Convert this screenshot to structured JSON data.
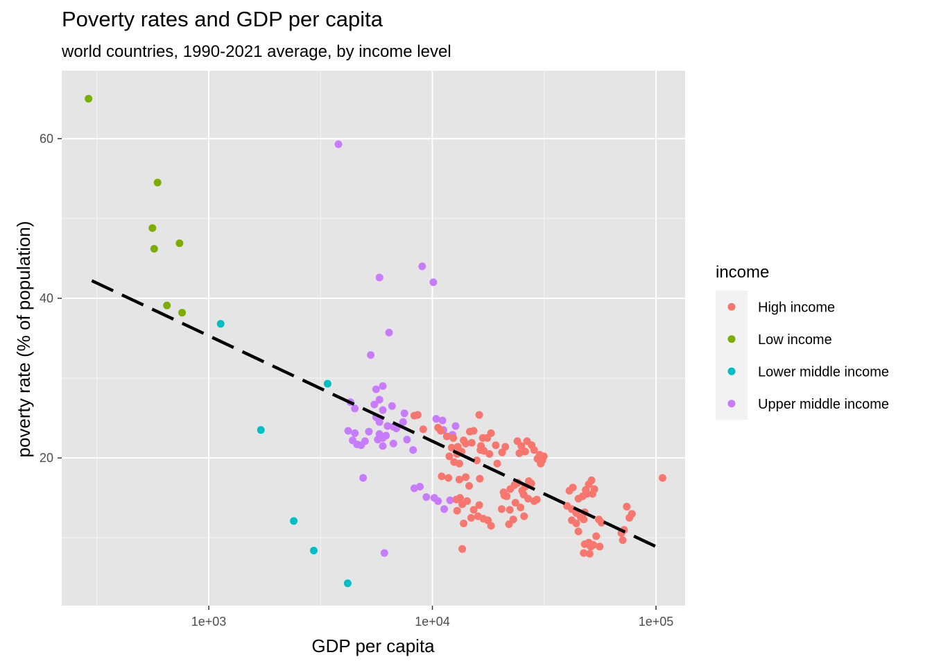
{
  "chart_data": {
    "type": "scatter",
    "title": "Poverty rates and GDP per capita",
    "subtitle": "world countries, 1990-2021 average, by income level",
    "xlabel": "GDP per capita",
    "ylabel": "poverty rate (% of population)",
    "x_scale": "log10",
    "xlim": [
      220,
      135000
    ],
    "ylim": [
      1.5,
      68.5
    ],
    "x_ticks": [
      {
        "value": 1000,
        "label": "1e+03"
      },
      {
        "value": 10000,
        "label": "1e+04"
      },
      {
        "value": 100000,
        "label": "1e+05"
      }
    ],
    "x_minor_ticks": [
      316,
      3162,
      31623
    ],
    "y_ticks": [
      {
        "value": 20,
        "label": "20"
      },
      {
        "value": 40,
        "label": "40"
      },
      {
        "value": 60,
        "label": "60"
      }
    ],
    "y_minor_ticks": [
      10,
      30,
      50
    ],
    "grid": true,
    "panel_background": "#e5e5e5",
    "legend": {
      "title": "income",
      "position": "right",
      "entries": [
        {
          "label": "High income",
          "color": "#F8766D"
        },
        {
          "label": "Low income",
          "color": "#7CAE00"
        },
        {
          "label": "Lower middle income",
          "color": "#00BFC4"
        },
        {
          "label": "Upper middle income",
          "color": "#C77CFF"
        }
      ]
    },
    "trend_line": {
      "style": "dashed",
      "color": "#000000",
      "x": [
        300,
        100000
      ],
      "y": [
        42.2,
        8.9
      ]
    },
    "series": [
      {
        "color": "#7CAE00",
        "points": [
          [
            290,
            65
          ],
          [
            590,
            54.5
          ],
          [
            560,
            48.8
          ],
          [
            570,
            46.2
          ],
          [
            740,
            46.9
          ],
          [
            650,
            39.1
          ],
          [
            760,
            38.2
          ]
        ]
      },
      {
        "color": "#00BFC4",
        "points": [
          [
            1130,
            36.8
          ],
          [
            3400,
            29.3
          ],
          [
            1710,
            23.5
          ],
          [
            2400,
            12.1
          ],
          [
            2950,
            8.4
          ],
          [
            4180,
            4.3
          ]
        ]
      },
      {
        "color": "#C77CFF",
        "points": [
          [
            3800,
            59.3
          ],
          [
            9000,
            44
          ],
          [
            5800,
            42.6
          ],
          [
            10100,
            42
          ],
          [
            6400,
            35.7
          ],
          [
            5300,
            32.9
          ],
          [
            6000,
            29
          ],
          [
            5600,
            28.6
          ],
          [
            4300,
            27
          ],
          [
            5800,
            27.3
          ],
          [
            4500,
            26.2
          ],
          [
            6600,
            26.5
          ],
          [
            5500,
            26.7
          ],
          [
            6000,
            26
          ],
          [
            5600,
            25.1
          ],
          [
            7500,
            25.6
          ],
          [
            5800,
            24.5
          ],
          [
            6300,
            24
          ],
          [
            7400,
            24.5
          ],
          [
            6900,
            23.7
          ],
          [
            6700,
            23.9
          ],
          [
            10400,
            24.9
          ],
          [
            11100,
            24.7
          ],
          [
            12700,
            24
          ],
          [
            4200,
            23.4
          ],
          [
            5200,
            23.3
          ],
          [
            5800,
            23
          ],
          [
            6200,
            22.8
          ],
          [
            4500,
            23.1
          ],
          [
            5700,
            22.3
          ],
          [
            6000,
            22.5
          ],
          [
            12300,
            22.9
          ],
          [
            11200,
            23.5
          ],
          [
            4400,
            22.2
          ],
          [
            4600,
            21.7
          ],
          [
            5000,
            22.1
          ],
          [
            4800,
            21.6
          ],
          [
            6700,
            21.8
          ],
          [
            6000,
            21.5
          ],
          [
            7700,
            22.3
          ],
          [
            8200,
            21
          ],
          [
            4900,
            17.5
          ],
          [
            8300,
            16.2
          ],
          [
            8800,
            16.4
          ],
          [
            9400,
            15.1
          ],
          [
            10200,
            15
          ],
          [
            10600,
            14.6
          ],
          [
            11300,
            13.6
          ],
          [
            12000,
            14.7
          ],
          [
            6100,
            8.1
          ]
        ]
      },
      {
        "color": "#F8766D",
        "points": [
          [
            8300,
            25.3
          ],
          [
            8600,
            25.4
          ],
          [
            9100,
            23.6
          ],
          [
            10600,
            23.8
          ],
          [
            10900,
            23.4
          ],
          [
            11600,
            22.7
          ],
          [
            12400,
            22.5
          ],
          [
            13000,
            21.4
          ],
          [
            13800,
            22.2
          ],
          [
            14700,
            23.3
          ],
          [
            15300,
            23.4
          ],
          [
            14100,
            21.8
          ],
          [
            16200,
            25.4
          ],
          [
            16800,
            22.5
          ],
          [
            17600,
            22.5
          ],
          [
            18300,
            23.1
          ],
          [
            19200,
            21.6
          ],
          [
            16400,
            21
          ],
          [
            17000,
            20.9
          ],
          [
            18000,
            20.5
          ],
          [
            19500,
            19.3
          ],
          [
            20500,
            20.7
          ],
          [
            21200,
            21.4
          ],
          [
            15000,
            21.9
          ],
          [
            16500,
            21.5
          ],
          [
            15800,
            19.7
          ],
          [
            13500,
            20.8
          ],
          [
            12200,
            21.3
          ],
          [
            11900,
            20.2
          ],
          [
            12900,
            20.5
          ],
          [
            12500,
            19.5
          ],
          [
            13200,
            19.3
          ],
          [
            24000,
            22.1
          ],
          [
            25000,
            21.5
          ],
          [
            26500,
            22.1
          ],
          [
            27800,
            21.6
          ],
          [
            24500,
            20.6
          ],
          [
            26000,
            20.8
          ],
          [
            28500,
            21
          ],
          [
            29500,
            19.9
          ],
          [
            30200,
            20.4
          ],
          [
            31000,
            19.7
          ],
          [
            31500,
            20.2
          ],
          [
            30500,
            19.3
          ],
          [
            11000,
            17.7
          ],
          [
            11800,
            17.5
          ],
          [
            13200,
            17.3
          ],
          [
            14100,
            17.6
          ],
          [
            14600,
            16.5
          ],
          [
            16300,
            17.4
          ],
          [
            20800,
            15.7
          ],
          [
            21500,
            15.2
          ],
          [
            22300,
            16.1
          ],
          [
            23300,
            16.6
          ],
          [
            24100,
            16.9
          ],
          [
            25200,
            15.9
          ],
          [
            26000,
            16.4
          ],
          [
            27000,
            17.1
          ],
          [
            27700,
            16.8
          ],
          [
            25600,
            15.4
          ],
          [
            26800,
            14.9
          ],
          [
            28500,
            14.6
          ],
          [
            29300,
            14.8
          ],
          [
            22200,
            13.5
          ],
          [
            23500,
            14.4
          ],
          [
            24800,
            13.8
          ],
          [
            25700,
            12.7
          ],
          [
            22000,
            11.7
          ],
          [
            23000,
            12.3
          ],
          [
            20400,
            13.6
          ],
          [
            21000,
            15.3
          ],
          [
            12800,
            14.8
          ],
          [
            13300,
            15
          ],
          [
            13600,
            14.2
          ],
          [
            14300,
            14.6
          ],
          [
            15300,
            13.5
          ],
          [
            16200,
            14.1
          ],
          [
            12900,
            13.4
          ],
          [
            13800,
            11.8
          ],
          [
            14900,
            12.5
          ],
          [
            16000,
            12.7
          ],
          [
            16900,
            12.4
          ],
          [
            17700,
            12.2
          ],
          [
            18300,
            11.5
          ],
          [
            13600,
            8.6
          ],
          [
            41000,
            15.9
          ],
          [
            42500,
            16.3
          ],
          [
            45000,
            14.9
          ],
          [
            47000,
            15.2
          ],
          [
            48500,
            16
          ],
          [
            50000,
            16.7
          ],
          [
            51500,
            17.2
          ],
          [
            53000,
            16.1
          ],
          [
            49000,
            15.5
          ],
          [
            52000,
            15.5
          ],
          [
            40000,
            14
          ],
          [
            42000,
            13.6
          ],
          [
            44000,
            13.1
          ],
          [
            46000,
            12.6
          ],
          [
            42000,
            12.2
          ],
          [
            44000,
            11.8
          ],
          [
            45000,
            10.8
          ],
          [
            47500,
            12.3
          ],
          [
            48000,
            13.2
          ],
          [
            55500,
            12.3
          ],
          [
            57000,
            11.9
          ],
          [
            54000,
            10.2
          ],
          [
            48000,
            9.2
          ],
          [
            50000,
            9.4
          ],
          [
            51000,
            8.9
          ],
          [
            52500,
            9.1
          ],
          [
            56000,
            8.9
          ],
          [
            47500,
            8.1
          ],
          [
            50500,
            8
          ],
          [
            74000,
            13.9
          ],
          [
            76000,
            12.5
          ],
          [
            78000,
            13
          ],
          [
            72000,
            11
          ],
          [
            70000,
            10.6
          ],
          [
            71000,
            9.7
          ],
          [
            107000,
            17.5
          ]
        ]
      }
    ]
  }
}
